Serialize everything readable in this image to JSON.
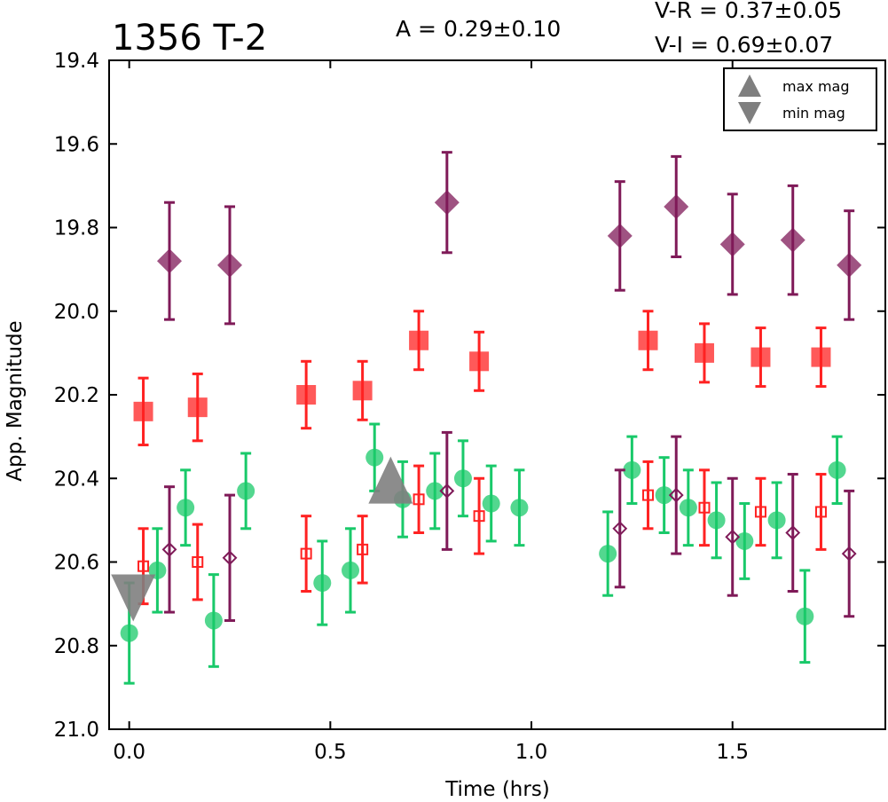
{
  "chart_data": {
    "type": "scatter",
    "title": "1356 T-2",
    "amplitude_text": "A  = 0.29±0.10",
    "color_indices": [
      "V-R = 0.37±0.05",
      "V-I  = 0.69±0.07"
    ],
    "xlabel": "Time (hrs)",
    "ylabel": "App. Magnitude",
    "xlim": [
      -0.05,
      1.88
    ],
    "ylim": [
      21.0,
      19.4
    ],
    "y_inverted": true,
    "xticks": [
      "0.0",
      "0.5",
      "1.0",
      "1.5"
    ],
    "xtick_values": [
      0.0,
      0.5,
      1.0,
      1.5
    ],
    "yticks": [
      "19.4",
      "19.6",
      "19.8",
      "20.0",
      "20.2",
      "20.4",
      "20.6",
      "20.8",
      "21.0"
    ],
    "ytick_values": [
      19.4,
      19.6,
      19.8,
      20.0,
      20.2,
      20.4,
      20.6,
      20.8,
      21.0
    ],
    "legend": {
      "placement": "top-right",
      "entries": [
        {
          "label": "max mag",
          "marker": "triangle-up",
          "color": "#7f7f7f"
        },
        {
          "label": "min mag",
          "marker": "triangle-down",
          "color": "#7f7f7f"
        }
      ]
    },
    "series": [
      {
        "marker": "diamond-filled",
        "color": "#7f1a58",
        "points": [
          {
            "x": 0.1,
            "y": 19.88,
            "err": 0.14
          },
          {
            "x": 0.25,
            "y": 19.89,
            "err": 0.14
          },
          {
            "x": 0.79,
            "y": 19.74,
            "err": 0.12
          },
          {
            "x": 1.22,
            "y": 19.82,
            "err": 0.13
          },
          {
            "x": 1.36,
            "y": 19.75,
            "err": 0.12
          },
          {
            "x": 1.5,
            "y": 19.84,
            "err": 0.12
          },
          {
            "x": 1.65,
            "y": 19.83,
            "err": 0.13
          },
          {
            "x": 1.79,
            "y": 19.89,
            "err": 0.13
          }
        ]
      },
      {
        "marker": "square-filled",
        "color": "#ff2222",
        "points": [
          {
            "x": 0.035,
            "y": 20.24,
            "err": 0.08
          },
          {
            "x": 0.17,
            "y": 20.23,
            "err": 0.08
          },
          {
            "x": 0.44,
            "y": 20.2,
            "err": 0.08
          },
          {
            "x": 0.58,
            "y": 20.19,
            "err": 0.07
          },
          {
            "x": 0.72,
            "y": 20.07,
            "err": 0.07
          },
          {
            "x": 0.87,
            "y": 20.12,
            "err": 0.07
          },
          {
            "x": 1.29,
            "y": 20.07,
            "err": 0.07
          },
          {
            "x": 1.43,
            "y": 20.1,
            "err": 0.07
          },
          {
            "x": 1.57,
            "y": 20.11,
            "err": 0.07
          },
          {
            "x": 1.72,
            "y": 20.11,
            "err": 0.07
          }
        ]
      },
      {
        "marker": "circle-filled",
        "color": "#19c96a",
        "points": [
          {
            "x": 0.0,
            "y": 20.77,
            "err": 0.12
          },
          {
            "x": 0.07,
            "y": 20.62,
            "err": 0.1
          },
          {
            "x": 0.14,
            "y": 20.47,
            "err": 0.09
          },
          {
            "x": 0.21,
            "y": 20.74,
            "err": 0.11
          },
          {
            "x": 0.29,
            "y": 20.43,
            "err": 0.09
          },
          {
            "x": 0.48,
            "y": 20.65,
            "err": 0.1
          },
          {
            "x": 0.55,
            "y": 20.62,
            "err": 0.1
          },
          {
            "x": 0.61,
            "y": 20.35,
            "err": 0.08
          },
          {
            "x": 0.68,
            "y": 20.45,
            "err": 0.09
          },
          {
            "x": 0.76,
            "y": 20.43,
            "err": 0.09
          },
          {
            "x": 0.83,
            "y": 20.4,
            "err": 0.09
          },
          {
            "x": 0.9,
            "y": 20.46,
            "err": 0.09
          },
          {
            "x": 0.97,
            "y": 20.47,
            "err": 0.09
          },
          {
            "x": 1.19,
            "y": 20.58,
            "err": 0.1
          },
          {
            "x": 1.25,
            "y": 20.38,
            "err": 0.08
          },
          {
            "x": 1.33,
            "y": 20.44,
            "err": 0.09
          },
          {
            "x": 1.39,
            "y": 20.47,
            "err": 0.09
          },
          {
            "x": 1.46,
            "y": 20.5,
            "err": 0.09
          },
          {
            "x": 1.53,
            "y": 20.55,
            "err": 0.09
          },
          {
            "x": 1.61,
            "y": 20.5,
            "err": 0.09
          },
          {
            "x": 1.68,
            "y": 20.73,
            "err": 0.11
          },
          {
            "x": 1.76,
            "y": 20.38,
            "err": 0.08
          }
        ]
      },
      {
        "marker": "square-open",
        "color": "#ff2222",
        "points": [
          {
            "x": 0.035,
            "y": 20.61,
            "err": 0.09
          },
          {
            "x": 0.17,
            "y": 20.6,
            "err": 0.09
          },
          {
            "x": 0.44,
            "y": 20.58,
            "err": 0.09
          },
          {
            "x": 0.58,
            "y": 20.57,
            "err": 0.08
          },
          {
            "x": 0.72,
            "y": 20.45,
            "err": 0.08
          },
          {
            "x": 0.87,
            "y": 20.49,
            "err": 0.09
          },
          {
            "x": 1.29,
            "y": 20.44,
            "err": 0.08
          },
          {
            "x": 1.43,
            "y": 20.47,
            "err": 0.09
          },
          {
            "x": 1.57,
            "y": 20.48,
            "err": 0.08
          },
          {
            "x": 1.72,
            "y": 20.48,
            "err": 0.09
          }
        ]
      },
      {
        "marker": "diamond-open",
        "color": "#7f1a58",
        "points": [
          {
            "x": 0.1,
            "y": 20.57,
            "err": 0.15
          },
          {
            "x": 0.25,
            "y": 20.59,
            "err": 0.15
          },
          {
            "x": 0.79,
            "y": 20.43,
            "err": 0.14
          },
          {
            "x": 1.22,
            "y": 20.52,
            "err": 0.14
          },
          {
            "x": 1.36,
            "y": 20.44,
            "err": 0.14
          },
          {
            "x": 1.5,
            "y": 20.54,
            "err": 0.14
          },
          {
            "x": 1.65,
            "y": 20.53,
            "err": 0.14
          },
          {
            "x": 1.79,
            "y": 20.58,
            "err": 0.15
          }
        ]
      }
    ],
    "extremes": [
      {
        "type": "max mag",
        "marker": "triangle-up",
        "x": 0.65,
        "y": 20.42,
        "color": "#7f7f7f"
      },
      {
        "type": "min mag",
        "marker": "triangle-down",
        "x": 0.01,
        "y": 20.67,
        "color": "#7f7f7f"
      }
    ]
  }
}
